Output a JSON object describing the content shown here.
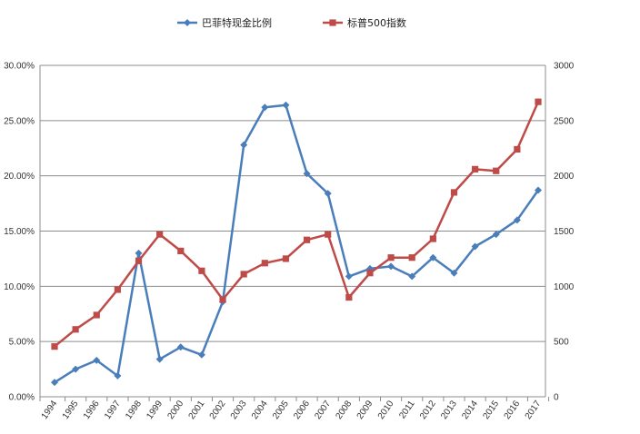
{
  "chart_data": {
    "type": "line",
    "categories": [
      "1994",
      "1995",
      "1996",
      "1997",
      "1998",
      "1999",
      "2000",
      "2001",
      "2002",
      "2003",
      "2004",
      "2005",
      "2006",
      "2007",
      "2008",
      "2009",
      "2010",
      "2011",
      "2012",
      "2013",
      "2014",
      "2015",
      "2016",
      "2017"
    ],
    "series": [
      {
        "name": "巴菲特现金比例",
        "axis": "left",
        "color": "#4a7ebb",
        "marker": "diamond",
        "values": [
          0.013,
          0.025,
          0.033,
          0.019,
          0.13,
          0.034,
          0.045,
          0.038,
          0.086,
          0.228,
          0.262,
          0.264,
          0.202,
          0.184,
          0.109,
          0.116,
          0.118,
          0.109,
          0.126,
          0.112,
          0.136,
          0.147,
          0.16,
          0.187
        ]
      },
      {
        "name": "标普500指数",
        "axis": "right",
        "color": "#be4b48",
        "marker": "square",
        "values": [
          455,
          610,
          740,
          970,
          1230,
          1470,
          1320,
          1140,
          880,
          1110,
          1210,
          1250,
          1420,
          1470,
          900,
          1120,
          1260,
          1260,
          1430,
          1850,
          2060,
          2045,
          2240,
          2670
        ]
      }
    ],
    "y_left": {
      "ylim": [
        0,
        0.3
      ],
      "ticks": [
        "0.00%",
        "5.00%",
        "10.00%",
        "15.00%",
        "20.00%",
        "25.00%",
        "30.00%"
      ]
    },
    "y_right": {
      "ylim": [
        0,
        3000
      ],
      "ticks": [
        "0",
        "500",
        "1000",
        "1500",
        "2000",
        "2500",
        "3000"
      ]
    },
    "grid": true,
    "legend_position": "top"
  }
}
